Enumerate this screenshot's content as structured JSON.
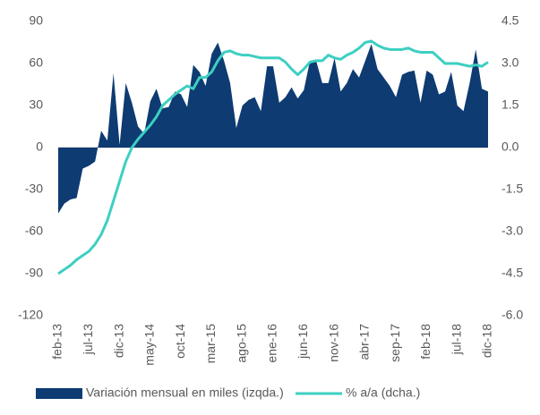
{
  "chart_data": {
    "type": "combo",
    "categories": [
      "feb-13",
      null,
      null,
      null,
      null,
      "jul-13",
      null,
      null,
      null,
      null,
      "dic-13",
      null,
      null,
      null,
      null,
      "may-14",
      null,
      null,
      null,
      null,
      "oct-14",
      null,
      null,
      null,
      null,
      "mar-15",
      null,
      null,
      null,
      null,
      "ago-15",
      null,
      null,
      null,
      null,
      "ene-16",
      null,
      null,
      null,
      null,
      "jun-16",
      null,
      null,
      null,
      null,
      "nov-16",
      null,
      null,
      null,
      null,
      "abr-17",
      null,
      null,
      null,
      null,
      "sep-17",
      null,
      null,
      null,
      null,
      "feb-18",
      null,
      null,
      null,
      null,
      "jul-18",
      null,
      null,
      null,
      null,
      "dic-18"
    ],
    "series": [
      {
        "name": "Variación mensual en miles (izqda.)",
        "type": "area",
        "color": "#0d3b72",
        "values": [
          -47,
          -40,
          -37,
          -36,
          -15,
          -13,
          -10,
          12,
          5,
          53,
          2,
          46,
          32,
          15,
          10,
          33,
          42,
          28,
          29,
          40,
          38,
          29,
          59,
          54,
          44,
          67,
          75,
          62,
          46,
          14,
          30,
          34,
          36,
          26,
          58,
          58,
          32,
          36,
          43,
          35,
          41,
          62,
          62,
          46,
          46,
          64,
          40,
          46,
          56,
          50,
          62,
          74,
          56,
          50,
          44,
          36,
          52,
          54,
          55,
          32,
          55,
          52,
          38,
          40,
          54,
          30,
          26,
          46,
          70,
          42,
          40
        ]
      },
      {
        "name": "% a/a (dcha.)",
        "type": "line",
        "color": "#3dcfc2",
        "axis": "y2",
        "values": [
          -4.5,
          -4.35,
          -4.2,
          -4.0,
          -3.85,
          -3.7,
          -3.45,
          -3.1,
          -2.6,
          -1.9,
          -1.2,
          -0.5,
          0.0,
          0.3,
          0.55,
          0.8,
          1.1,
          1.5,
          1.7,
          1.9,
          2.05,
          2.2,
          2.1,
          2.5,
          2.5,
          2.7,
          3.1,
          3.4,
          3.45,
          3.35,
          3.3,
          3.3,
          3.25,
          3.2,
          3.2,
          3.2,
          3.2,
          3.05,
          2.8,
          2.6,
          2.8,
          3.05,
          3.1,
          3.1,
          3.3,
          3.2,
          3.15,
          3.3,
          3.4,
          3.55,
          3.75,
          3.8,
          3.65,
          3.55,
          3.5,
          3.5,
          3.5,
          3.55,
          3.45,
          3.4,
          3.4,
          3.4,
          3.2,
          3.0,
          3.0,
          3.0,
          2.95,
          2.9,
          2.95,
          2.9,
          3.05
        ]
      }
    ],
    "ylim": [
      -120,
      90
    ],
    "yticks": [
      90,
      60,
      30,
      0,
      -30,
      -60,
      -90,
      -120
    ],
    "y2lim": [
      -6,
      4.5
    ],
    "y2ticks": [
      4.5,
      {
        "value": 3,
        "label": "3.0"
      },
      {
        "value": 1.5,
        "label": "1.5"
      },
      {
        "value": 0,
        "label": "0.0"
      },
      -1.5,
      {
        "value": -3,
        "label": "-3.0"
      },
      -4.5,
      {
        "value": -6,
        "label": "-6.0"
      }
    ],
    "legend": "bottom"
  }
}
